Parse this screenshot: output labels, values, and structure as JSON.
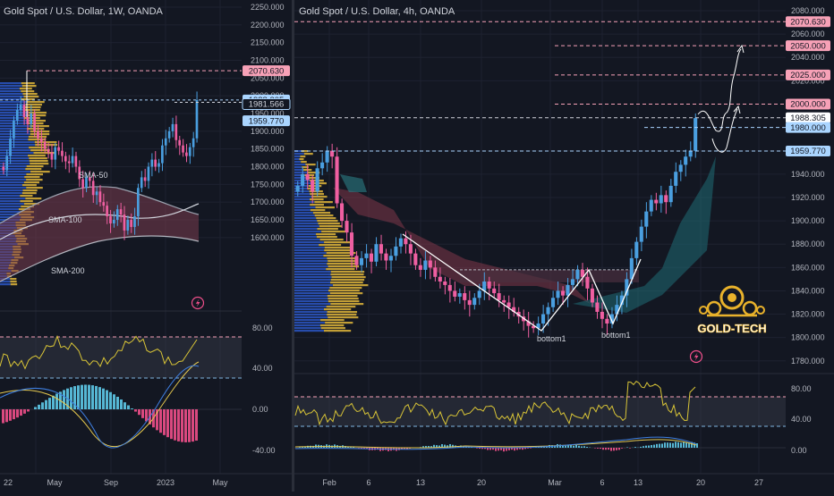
{
  "colors": {
    "background": "#131722",
    "grid": "#1e2230",
    "up": "#ef5fa1",
    "down": "#4a9fe0",
    "price_label_blue": "#aad5ff",
    "price_label_pink": "#f7a1b7",
    "rsi_line": "#d9c537",
    "macd_hist_pos": "#5ec9e8",
    "macd_hist_neg": "#ef4f8a",
    "volume_profile_blue": "#2f5fd9",
    "volume_profile_gold": "#e0b63a"
  },
  "left_panel": {
    "title": "Gold Spot / U.S. Dollar, 1W, OANDA",
    "price_axis": [
      "2250.000",
      "2200.000",
      "2150.000",
      "2100.000",
      "2050.000",
      "2000.000",
      "1950.000",
      "1900.000",
      "1850.000",
      "1800.000",
      "1750.000",
      "1700.000",
      "1650.000",
      "1600.000"
    ],
    "price_labels": [
      {
        "text": "2070.630",
        "style": "pink"
      },
      {
        "text": "1988.305",
        "style": "blue"
      },
      {
        "text": "1981.566",
        "style": "blue_outline"
      },
      {
        "text": "1959.770",
        "style": "blue"
      }
    ],
    "sma_labels": [
      "SMA-50",
      "SMA-100",
      "SMA-200"
    ],
    "rsi_axis": [
      "80.00",
      "40.00"
    ],
    "macd_axis": [
      "0.00",
      "-40.00"
    ],
    "time_axis": [
      "22",
      "May",
      "Sep",
      "2023",
      "May"
    ],
    "icon": "lightning-icon"
  },
  "right_panel": {
    "title": "Gold Spot / U.S. Dollar, 4h, OANDA",
    "price_axis": [
      "2080.000",
      "2060.000",
      "2040.000",
      "2020.000",
      "1960.000",
      "1940.000",
      "1920.000",
      "1900.000",
      "1880.000",
      "1860.000",
      "1840.000",
      "1820.000",
      "1800.000",
      "1780.000"
    ],
    "price_labels": [
      {
        "text": "2070.630",
        "style": "pink"
      },
      {
        "text": "2050.000",
        "style": "pink"
      },
      {
        "text": "2025.000",
        "style": "pink"
      },
      {
        "text": "2000.000",
        "style": "pink"
      },
      {
        "text": "1988.305",
        "style": "white"
      },
      {
        "text": "1980.000",
        "style": "blue"
      },
      {
        "text": "1959.770",
        "style": "blue"
      }
    ],
    "pattern_labels": [
      "bottom1",
      "bottom1"
    ],
    "rsi_axis": [
      "80.00",
      "40.00"
    ],
    "macd_axis": [
      "0.00"
    ],
    "time_axis": [
      "Feb",
      "6",
      "13",
      "20",
      "Mar",
      "6",
      "13",
      "20",
      "27"
    ],
    "logo_text": "GOLD-TECH",
    "icon": "lightning-icon"
  },
  "chart_data": [
    {
      "type": "candlestick",
      "title": "Gold Spot / U.S. Dollar, 1W, OANDA",
      "x_ticks": [
        "May",
        "Sep",
        "2023",
        "May"
      ],
      "ylim": [
        1580,
        2260
      ],
      "closes": [
        1790,
        1830,
        1880,
        1930,
        1960,
        1975,
        1940,
        1920,
        1950,
        1900,
        1880,
        1870,
        1850,
        1840,
        1820,
        1855,
        1845,
        1830,
        1815,
        1810,
        1830,
        1800,
        1765,
        1740,
        1770,
        1760,
        1720,
        1730,
        1700,
        1690,
        1660,
        1640,
        1650,
        1680,
        1665,
        1620,
        1650,
        1630,
        1660,
        1740,
        1770,
        1760,
        1800,
        1820,
        1800,
        1810,
        1860,
        1880,
        1900,
        1920,
        1875,
        1860,
        1840,
        1830,
        1855,
        1880,
        1988
      ],
      "horizontal_levels": [
        2070.63,
        1988.305,
        1981.566,
        1959.77
      ],
      "moving_averages": [
        "SMA-50",
        "SMA-100",
        "SMA-200"
      ]
    },
    {
      "type": "candlestick",
      "title": "Gold Spot / U.S. Dollar, 4h, OANDA",
      "x_ticks": [
        "Feb",
        "6",
        "13",
        "20",
        "Mar",
        "6",
        "13",
        "20",
        "27"
      ],
      "ylim": [
        1770,
        2085
      ],
      "closes": [
        1930,
        1940,
        1935,
        1925,
        1945,
        1950,
        1960,
        1955,
        1915,
        1900,
        1890,
        1870,
        1862,
        1868,
        1872,
        1865,
        1880,
        1872,
        1866,
        1870,
        1878,
        1885,
        1880,
        1872,
        1862,
        1858,
        1866,
        1860,
        1852,
        1848,
        1845,
        1840,
        1835,
        1838,
        1832,
        1828,
        1834,
        1840,
        1848,
        1842,
        1838,
        1832,
        1830,
        1826,
        1822,
        1818,
        1814,
        1810,
        1808,
        1812,
        1820,
        1826,
        1834,
        1840,
        1836,
        1845,
        1850,
        1858,
        1852,
        1842,
        1830,
        1822,
        1816,
        1812,
        1820,
        1828,
        1836,
        1850,
        1868,
        1882,
        1895,
        1908,
        1918,
        1915,
        1922,
        1916,
        1930,
        1942,
        1948,
        1955,
        1960,
        1988
      ],
      "horizontal_levels": [
        2070.63,
        2050,
        2025,
        2000,
        1988.305,
        1980,
        1959.77
      ],
      "pattern": "double bottom",
      "annotations": [
        "bottom1",
        "bottom1"
      ]
    }
  ]
}
